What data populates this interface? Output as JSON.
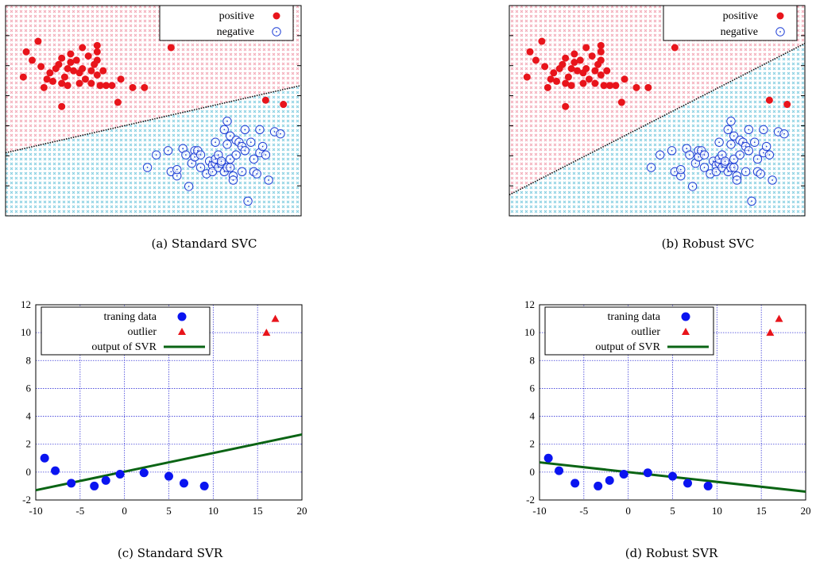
{
  "chart_data": [
    {
      "type": "scatter",
      "caption": "(a) Standard SVC",
      "legend": [
        {
          "label": "positive",
          "marker": "filled-circle",
          "color": "#e8141b"
        },
        {
          "label": "negative",
          "marker": "dotted-circle",
          "color": "#1f3fd6"
        }
      ],
      "legend_position": "top-right",
      "axes_ticks_labeled": false,
      "region_colors": {
        "positive": "#f6b8c2",
        "negative": "#8ed3e4"
      },
      "xlim": [
        0,
        100
      ],
      "ylim": [
        0,
        100
      ],
      "boundary": [
        [
          0,
          30
        ],
        [
          100,
          62
        ]
      ],
      "series": [
        {
          "name": "positive",
          "points": [
            [
              7,
              78
            ],
            [
              11,
              83
            ],
            [
              6,
              66
            ],
            [
              9,
              74
            ],
            [
              12,
              71
            ],
            [
              13,
              61
            ],
            [
              14,
              65
            ],
            [
              15,
              68
            ],
            [
              16,
              64
            ],
            [
              17,
              70
            ],
            [
              18,
              72
            ],
            [
              19,
              75
            ],
            [
              19,
              63
            ],
            [
              20,
              66
            ],
            [
              21,
              62
            ],
            [
              21,
              70
            ],
            [
              22,
              77
            ],
            [
              22,
              73
            ],
            [
              23,
              69
            ],
            [
              24,
              74
            ],
            [
              25,
              68
            ],
            [
              25,
              63
            ],
            [
              26,
              80
            ],
            [
              26,
              70
            ],
            [
              27,
              65
            ],
            [
              28,
              76
            ],
            [
              29,
              69
            ],
            [
              29,
              63
            ],
            [
              30,
              72
            ],
            [
              31,
              74
            ],
            [
              31,
              78
            ],
            [
              31,
              81
            ],
            [
              31,
              67
            ],
            [
              32,
              62
            ],
            [
              33,
              69
            ],
            [
              34,
              62
            ],
            [
              36,
              62
            ],
            [
              38,
              54
            ],
            [
              39,
              65
            ],
            [
              43,
              61
            ],
            [
              47,
              61
            ],
            [
              19,
              52
            ],
            [
              56,
              80
            ],
            [
              88,
              55
            ],
            [
              94,
              53
            ]
          ]
        },
        {
          "name": "negative",
          "points": [
            [
              48,
              23
            ],
            [
              51,
              29
            ],
            [
              55,
              31
            ],
            [
              56,
              21
            ],
            [
              58,
              19
            ],
            [
              58,
              22
            ],
            [
              60,
              32
            ],
            [
              61,
              29
            ],
            [
              62,
              14
            ],
            [
              63,
              25
            ],
            [
              64,
              31
            ],
            [
              64,
              28
            ],
            [
              65,
              31
            ],
            [
              66,
              29
            ],
            [
              66,
              23
            ],
            [
              68,
              20
            ],
            [
              69,
              26
            ],
            [
              70,
              24
            ],
            [
              70,
              21
            ],
            [
              71,
              35
            ],
            [
              71,
              25
            ],
            [
              71,
              27
            ],
            [
              72,
              23
            ],
            [
              72,
              29
            ],
            [
              73,
              25
            ],
            [
              73,
              26
            ],
            [
              74,
              21
            ],
            [
              74,
              41
            ],
            [
              75,
              23
            ],
            [
              75,
              34
            ],
            [
              75,
              45
            ],
            [
              76,
              38
            ],
            [
              76,
              27
            ],
            [
              76,
              23
            ],
            [
              77,
              19
            ],
            [
              77,
              17
            ],
            [
              78,
              29
            ],
            [
              78,
              36
            ],
            [
              79,
              35
            ],
            [
              80,
              33
            ],
            [
              80,
              21
            ],
            [
              81,
              31
            ],
            [
              81,
              41
            ],
            [
              82,
              7
            ],
            [
              83,
              35
            ],
            [
              84,
              27
            ],
            [
              84,
              21
            ],
            [
              85,
              20
            ],
            [
              86,
              41
            ],
            [
              86,
              30
            ],
            [
              87,
              33
            ],
            [
              88,
              29
            ],
            [
              89,
              17
            ],
            [
              91,
              40
            ],
            [
              93,
              39
            ]
          ]
        }
      ]
    },
    {
      "type": "scatter",
      "caption": "(b) Robust SVC",
      "legend": [
        {
          "label": "positive",
          "marker": "filled-circle",
          "color": "#e8141b"
        },
        {
          "label": "negative",
          "marker": "dotted-circle",
          "color": "#1f3fd6"
        }
      ],
      "legend_position": "top-right",
      "axes_ticks_labeled": false,
      "region_colors": {
        "positive": "#f6b8c2",
        "negative": "#8ed3e4"
      },
      "xlim": [
        0,
        100
      ],
      "ylim": [
        0,
        100
      ],
      "boundary": [
        [
          0,
          10
        ],
        [
          100,
          82
        ]
      ],
      "series": [
        {
          "name": "positive",
          "points": [
            [
              7,
              78
            ],
            [
              11,
              83
            ],
            [
              6,
              66
            ],
            [
              9,
              74
            ],
            [
              12,
              71
            ],
            [
              13,
              61
            ],
            [
              14,
              65
            ],
            [
              15,
              68
            ],
            [
              16,
              64
            ],
            [
              17,
              70
            ],
            [
              18,
              72
            ],
            [
              19,
              75
            ],
            [
              19,
              63
            ],
            [
              20,
              66
            ],
            [
              21,
              62
            ],
            [
              21,
              70
            ],
            [
              22,
              77
            ],
            [
              22,
              73
            ],
            [
              23,
              69
            ],
            [
              24,
              74
            ],
            [
              25,
              68
            ],
            [
              25,
              63
            ],
            [
              26,
              80
            ],
            [
              26,
              70
            ],
            [
              27,
              65
            ],
            [
              28,
              76
            ],
            [
              29,
              69
            ],
            [
              29,
              63
            ],
            [
              30,
              72
            ],
            [
              31,
              74
            ],
            [
              31,
              78
            ],
            [
              31,
              81
            ],
            [
              31,
              67
            ],
            [
              32,
              62
            ],
            [
              33,
              69
            ],
            [
              34,
              62
            ],
            [
              36,
              62
            ],
            [
              38,
              54
            ],
            [
              39,
              65
            ],
            [
              43,
              61
            ],
            [
              47,
              61
            ],
            [
              19,
              52
            ],
            [
              56,
              80
            ],
            [
              88,
              55
            ],
            [
              94,
              53
            ]
          ]
        },
        {
          "name": "negative",
          "points": [
            [
              48,
              23
            ],
            [
              51,
              29
            ],
            [
              55,
              31
            ],
            [
              56,
              21
            ],
            [
              58,
              19
            ],
            [
              58,
              22
            ],
            [
              60,
              32
            ],
            [
              61,
              29
            ],
            [
              62,
              14
            ],
            [
              63,
              25
            ],
            [
              64,
              31
            ],
            [
              64,
              28
            ],
            [
              65,
              31
            ],
            [
              66,
              29
            ],
            [
              66,
              23
            ],
            [
              68,
              20
            ],
            [
              69,
              26
            ],
            [
              70,
              24
            ],
            [
              70,
              21
            ],
            [
              71,
              35
            ],
            [
              71,
              25
            ],
            [
              71,
              27
            ],
            [
              72,
              23
            ],
            [
              72,
              29
            ],
            [
              73,
              25
            ],
            [
              73,
              26
            ],
            [
              74,
              21
            ],
            [
              74,
              41
            ],
            [
              75,
              23
            ],
            [
              75,
              34
            ],
            [
              75,
              45
            ],
            [
              76,
              38
            ],
            [
              76,
              27
            ],
            [
              76,
              23
            ],
            [
              77,
              19
            ],
            [
              77,
              17
            ],
            [
              78,
              29
            ],
            [
              78,
              36
            ],
            [
              79,
              35
            ],
            [
              80,
              33
            ],
            [
              80,
              21
            ],
            [
              81,
              31
            ],
            [
              81,
              41
            ],
            [
              82,
              7
            ],
            [
              83,
              35
            ],
            [
              84,
              27
            ],
            [
              84,
              21
            ],
            [
              85,
              20
            ],
            [
              86,
              41
            ],
            [
              86,
              30
            ],
            [
              87,
              33
            ],
            [
              88,
              29
            ],
            [
              89,
              17
            ],
            [
              91,
              40
            ],
            [
              93,
              39
            ]
          ]
        }
      ]
    },
    {
      "type": "scatter",
      "caption": "(c) Standard SVR",
      "xlim": [
        -10,
        20
      ],
      "ylim": [
        -2,
        12
      ],
      "xticks": [
        -10,
        -5,
        0,
        5,
        10,
        15,
        20
      ],
      "yticks": [
        -2,
        0,
        2,
        4,
        6,
        8,
        10,
        12
      ],
      "grid": true,
      "legend_position": "top-left",
      "legend": [
        {
          "label": "traning data",
          "marker": "filled-circle",
          "color": "#0a14f0"
        },
        {
          "label": "outlier",
          "marker": "triangle",
          "color": "#e8141b"
        },
        {
          "label": "output of SVR",
          "marker": "line",
          "color": "#0a6414"
        }
      ],
      "series": [
        {
          "name": "traning data",
          "x": [
            -9,
            -7.8,
            -6,
            -3.4,
            -2.1,
            -0.5,
            2.2,
            5,
            6.7,
            9
          ],
          "y": [
            1.0,
            0.1,
            -0.8,
            -1.0,
            -0.6,
            -0.15,
            -0.05,
            -0.3,
            -0.8,
            -1.0
          ]
        },
        {
          "name": "outlier",
          "x": [
            16,
            17
          ],
          "y": [
            10,
            11
          ]
        },
        {
          "name": "output of SVR",
          "x": [
            -10,
            20
          ],
          "y": [
            -1.3,
            2.7
          ]
        }
      ]
    },
    {
      "type": "scatter",
      "caption": "(d) Robust SVR",
      "xlim": [
        -10,
        20
      ],
      "ylim": [
        -2,
        12
      ],
      "xticks": [
        -10,
        -5,
        0,
        5,
        10,
        15,
        20
      ],
      "yticks": [
        -2,
        0,
        2,
        4,
        6,
        8,
        10,
        12
      ],
      "grid": true,
      "legend_position": "top-left",
      "legend": [
        {
          "label": "traning data",
          "marker": "filled-circle",
          "color": "#0a14f0"
        },
        {
          "label": "outlier",
          "marker": "triangle",
          "color": "#e8141b"
        },
        {
          "label": "output of SVR",
          "marker": "line",
          "color": "#0a6414"
        }
      ],
      "series": [
        {
          "name": "traning data",
          "x": [
            -9,
            -7.8,
            -6,
            -3.4,
            -2.1,
            -0.5,
            2.2,
            5,
            6.7,
            9
          ],
          "y": [
            1.0,
            0.1,
            -0.8,
            -1.0,
            -0.6,
            -0.15,
            -0.05,
            -0.3,
            -0.8,
            -1.0
          ]
        },
        {
          "name": "outlier",
          "x": [
            16,
            17
          ],
          "y": [
            10,
            11
          ]
        },
        {
          "name": "output of SVR",
          "x": [
            -10,
            20
          ],
          "y": [
            0.7,
            -1.4
          ]
        }
      ]
    }
  ]
}
